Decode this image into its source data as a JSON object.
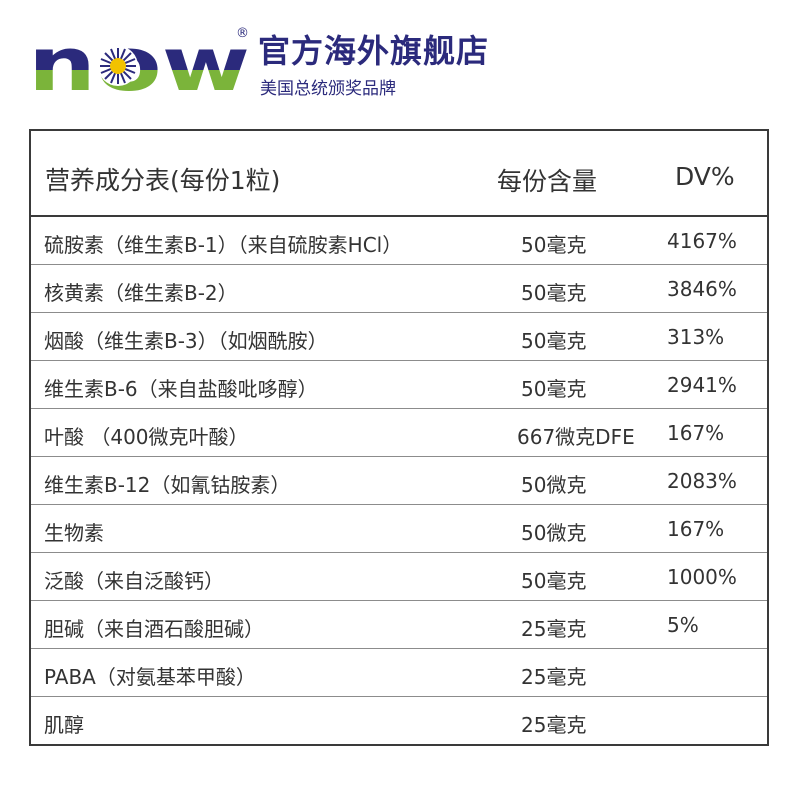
{
  "brand": {
    "logo_text": "NOW",
    "registered_mark": "®",
    "store_title": "官方海外旗舰店",
    "store_subtitle": "美国总统颁奖品牌",
    "colors": {
      "navy": "#2b2a7c",
      "green": "#7bb43a",
      "sun": "#f2c200"
    }
  },
  "table": {
    "headers": {
      "name": "营养成分表(每份1粒)",
      "amount": "每份含量",
      "dv": "DV%"
    },
    "rows": [
      {
        "name": "硫胺素（维生素B-1）（来自硫胺素HCl）",
        "amount": "50毫克",
        "dv": "4167%"
      },
      {
        "name": "核黄素（维生素B-2）",
        "amount": "50毫克",
        "dv": "3846%"
      },
      {
        "name": "烟酸（维生素B-3）（如烟酰胺）",
        "amount": "50毫克",
        "dv": "313%"
      },
      {
        "name": "维生素B-6（来自盐酸吡哆醇）",
        "amount": "50毫克",
        "dv": "2941%"
      },
      {
        "name": "叶酸 （400微克叶酸）",
        "amount": "667微克DFE",
        "dv": "167%"
      },
      {
        "name": "维生素B-12（如氰钴胺素）",
        "amount": "50微克",
        "dv": "2083%"
      },
      {
        "name": "生物素",
        "amount": "50微克",
        "dv": "167%"
      },
      {
        "name": "泛酸（来自泛酸钙）",
        "amount": "50毫克",
        "dv": "1000%"
      },
      {
        "name": "胆碱（来自酒石酸胆碱）",
        "amount": "25毫克",
        "dv": "5%"
      },
      {
        "name": "PABA（对氨基苯甲酸）",
        "amount": "25毫克",
        "dv": ""
      },
      {
        "name": "肌醇",
        "amount": "25毫克",
        "dv": ""
      }
    ]
  }
}
